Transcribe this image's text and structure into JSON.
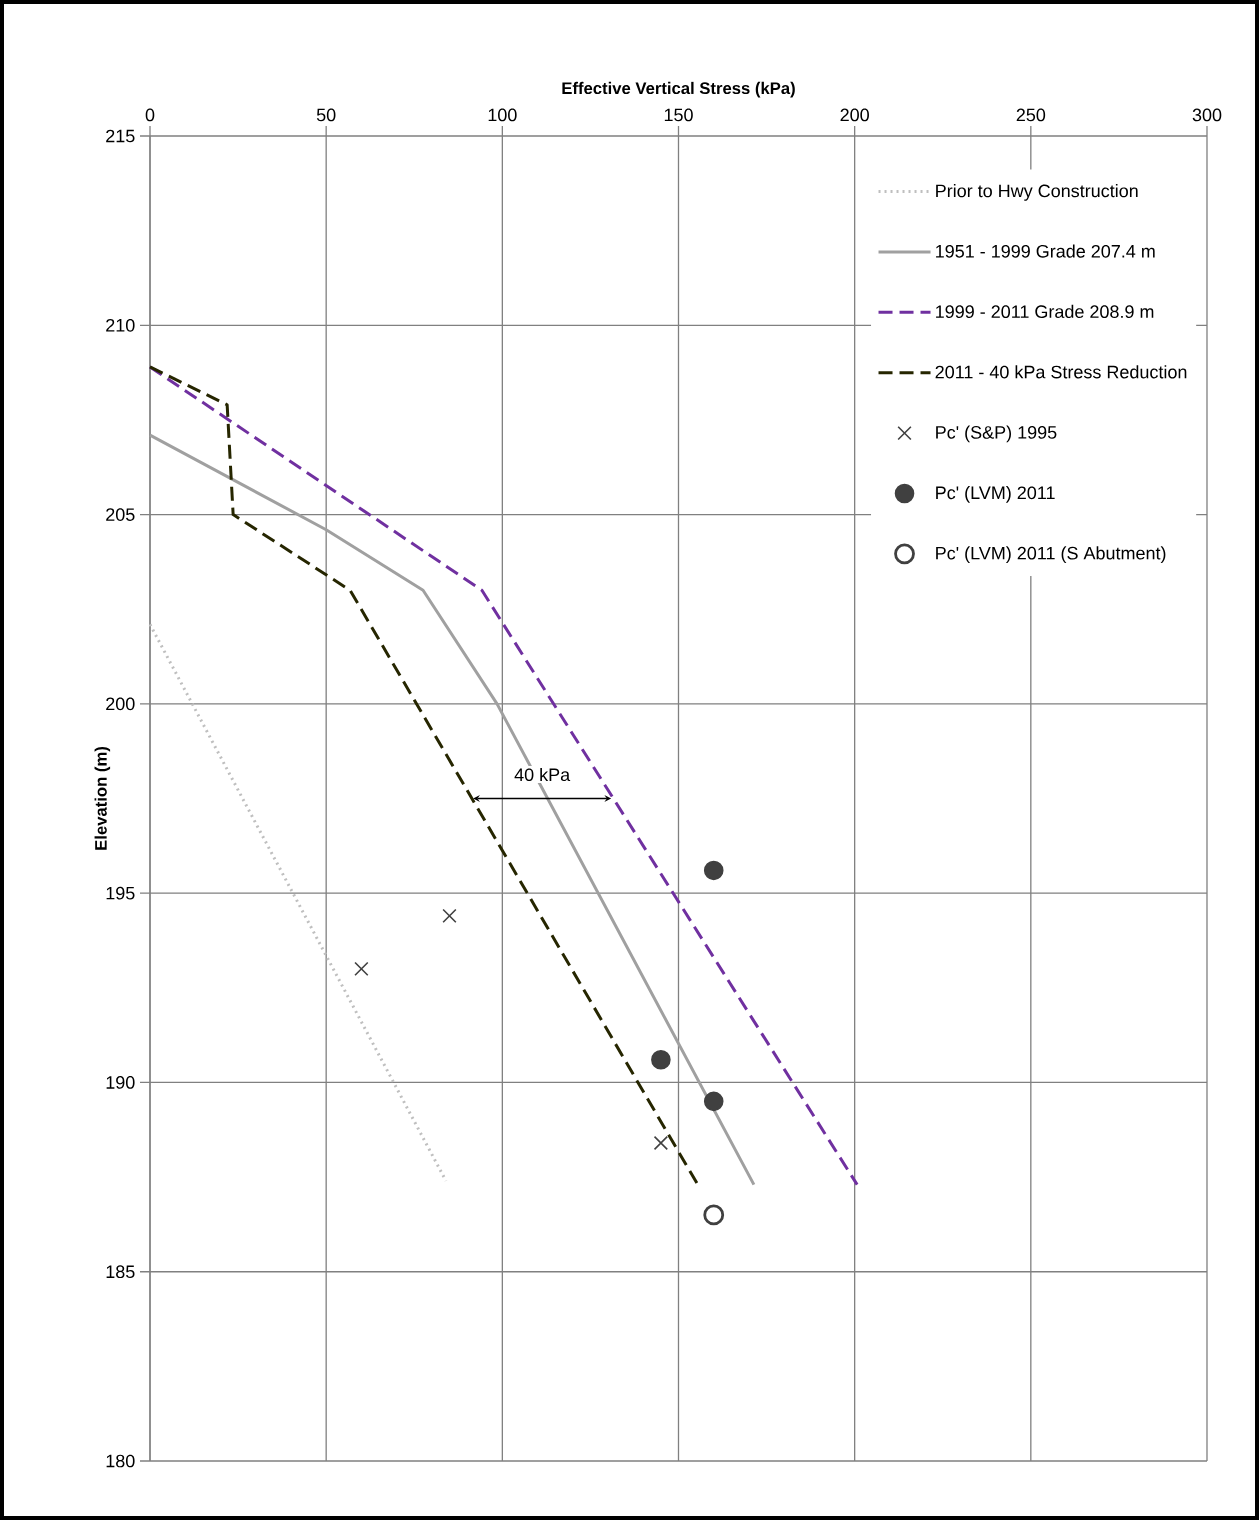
{
  "chart_data": {
    "type": "line",
    "xlabel": "Effective Vertical Stress (kPa)",
    "ylabel": "Elevation (m)",
    "xlim": [
      0,
      300
    ],
    "xticks": [
      0,
      50,
      100,
      150,
      200,
      250,
      300
    ],
    "ylim": [
      180,
      215
    ],
    "yticks": [
      180,
      185,
      190,
      195,
      200,
      205,
      210,
      215
    ],
    "grid": true,
    "legend": "top right",
    "series": [
      {
        "name": "Prior to Hwy Construction",
        "color": "#bfbfbf",
        "line_style": "dotted",
        "x": [
          0,
          84
        ],
        "values": [
          202.1,
          187.4
        ]
      },
      {
        "name": "1951 - 1999 Grade 207.4 m",
        "color": "#a0a0a0",
        "line_style": "solid",
        "x": [
          0,
          50,
          77.5,
          98.5,
          171.4
        ],
        "values": [
          207.1,
          204.6,
          203.0,
          200.0,
          187.3
        ]
      },
      {
        "name": "1999 - 2011 Grade 208.9 m",
        "color": "#7030a0",
        "line_style": "dashed",
        "x": [
          0,
          94.2,
          200.7
        ],
        "values": [
          208.9,
          203.0,
          187.3
        ]
      },
      {
        "name": "2011 - 40 kPa Stress Reduction",
        "color": "#262600",
        "line_style": "dashed",
        "x": [
          0,
          21.9,
          23.6,
          56.8,
          156.1
        ],
        "values": [
          208.9,
          207.9,
          205.0,
          203.0,
          187.2
        ]
      },
      {
        "name": "Pc' (S&P) 1995",
        "type": "scatter",
        "color": "#404040",
        "marker": "cross",
        "x": [
          60,
          85,
          145
        ],
        "values": [
          193.0,
          194.4,
          188.4
        ]
      },
      {
        "name": "Pc' (LVM) 2011",
        "type": "scatter",
        "color": "#404040",
        "marker": "circle",
        "x": [
          160,
          145,
          160
        ],
        "values": [
          195.6,
          190.6,
          189.5
        ]
      },
      {
        "name": "Pc' (LVM) 2011 (S Abutment)",
        "type": "scatter",
        "color": "#404040",
        "marker": "open circle",
        "x": [
          160
        ],
        "values": [
          186.5
        ]
      }
    ],
    "annotations": [
      {
        "text": "40 kPa",
        "x": 111.3,
        "y": 197.5
      }
    ]
  }
}
